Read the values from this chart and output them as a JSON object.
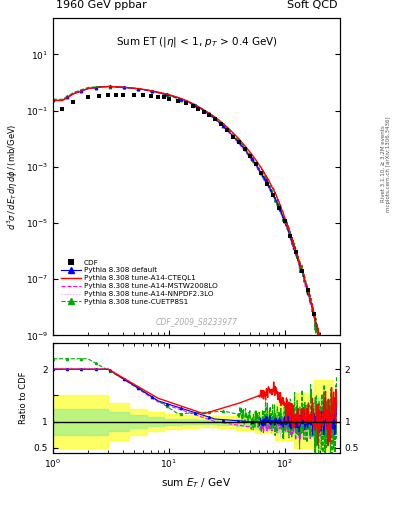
{
  "title_left": "1960 GeV ppbar",
  "title_right": "Soft QCD",
  "main_title": "Sum ET (|\\eta| < 1, p_T > 0.4 GeV)",
  "xlabel": "sum E_{T} / GeV",
  "ylabel_main": "d^{3}\\sigma / dE_T d\\eta d\\phi / (mb/GeV)",
  "ylabel_ratio": "Ratio to CDF",
  "right_label_top": "Rivet 3.1.10, ≥ 3.2M events",
  "right_label_bot": "mcplots.cern.ch [arXiv:1306.3436]",
  "watermark": "CDF_2009_S8233977",
  "xrange": [
    1,
    300
  ],
  "yrange_main": [
    1e-09,
    200
  ],
  "yrange_ratio": [
    0.4,
    2.5
  ],
  "band_yellow_color": "#ffff00",
  "band_green_color": "#90ee90",
  "band_alpha": 0.6,
  "figsize": [
    3.93,
    5.12
  ],
  "dpi": 100,
  "colors": {
    "default": "#0000ff",
    "CTEQL1": "#ff0000",
    "MSTW": "#ff00ff",
    "NNPDF": "#ff44ff",
    "CUETP8S1": "#00aa00"
  }
}
